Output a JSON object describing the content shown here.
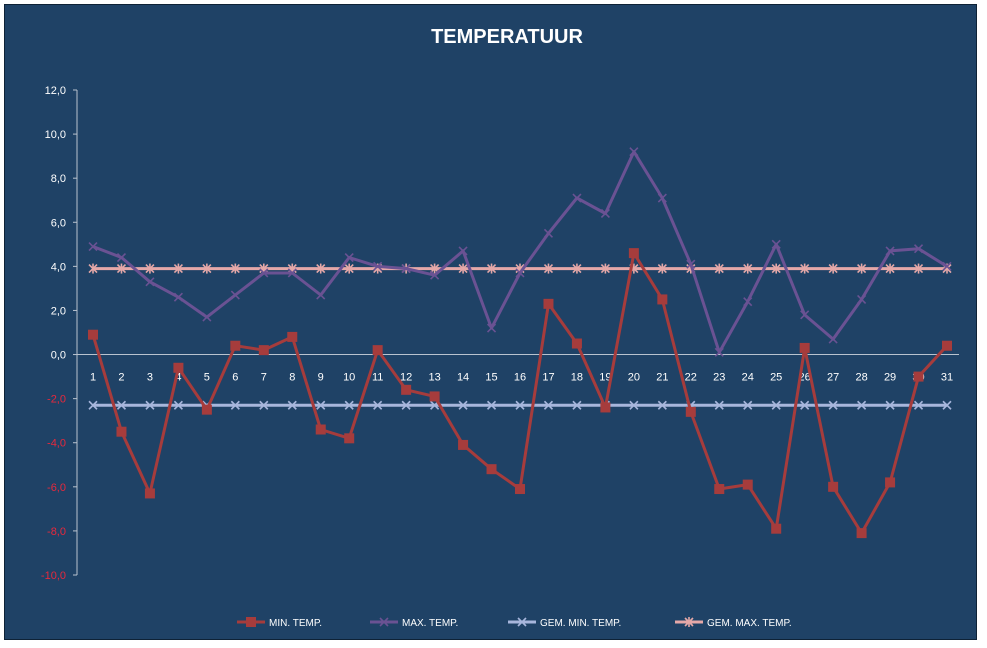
{
  "chart_data": {
    "type": "line",
    "title": "TEMPERATUUR",
    "xlabel": "",
    "ylabel": "",
    "x": [
      1,
      2,
      3,
      4,
      5,
      6,
      7,
      8,
      9,
      10,
      11,
      12,
      13,
      14,
      15,
      16,
      17,
      18,
      19,
      20,
      21,
      22,
      23,
      24,
      25,
      26,
      27,
      28,
      29,
      30,
      31
    ],
    "ylim": [
      -10,
      12
    ],
    "ytick_step": 2,
    "ytick_labels": [
      "-10,0",
      "-8,0",
      "-6,0",
      "-4,0",
      "-2,0",
      "0,0",
      "2,0",
      "4,0",
      "6,0",
      "8,0",
      "10,0",
      "12,0"
    ],
    "grid": false,
    "legend_position": "bottom",
    "negative_tick_color": "#e8283c",
    "positive_tick_color": "#ffffff",
    "background_color": "#1f4266",
    "series": [
      {
        "name": "MIN. TEMP.",
        "color": "#a63c3c",
        "marker": "square",
        "values": [
          0.9,
          -3.5,
          -6.3,
          -0.6,
          -2.5,
          0.4,
          0.2,
          0.8,
          -3.4,
          -3.8,
          0.2,
          -1.6,
          -1.9,
          -4.1,
          -5.2,
          -6.1,
          2.3,
          0.5,
          -2.4,
          4.6,
          2.5,
          -2.6,
          -6.1,
          -5.9,
          -7.9,
          0.3,
          -6.0,
          -8.1,
          -5.8,
          -1.0,
          0.4
        ]
      },
      {
        "name": "MAX. TEMP.",
        "color": "#6a5293",
        "marker": "x",
        "values": [
          4.9,
          4.4,
          3.3,
          2.6,
          1.7,
          2.7,
          3.7,
          3.7,
          2.7,
          4.4,
          4.0,
          3.9,
          3.6,
          4.7,
          1.2,
          3.7,
          5.5,
          7.1,
          6.4,
          9.2,
          7.1,
          4.1,
          0.1,
          2.4,
          5.0,
          1.8,
          0.7,
          2.5,
          4.7,
          4.8,
          4.0
        ]
      },
      {
        "name": "GEM. MIN. TEMP.",
        "color": "#a7b6dc",
        "marker": "x",
        "values": [
          -2.3,
          -2.3,
          -2.3,
          -2.3,
          -2.3,
          -2.3,
          -2.3,
          -2.3,
          -2.3,
          -2.3,
          -2.3,
          -2.3,
          -2.3,
          -2.3,
          -2.3,
          -2.3,
          -2.3,
          -2.3,
          -2.3,
          -2.3,
          -2.3,
          -2.3,
          -2.3,
          -2.3,
          -2.3,
          -2.3,
          -2.3,
          -2.3,
          -2.3,
          -2.3,
          -2.3
        ]
      },
      {
        "name": "GEM. MAX. TEMP.",
        "color": "#e5a8a8",
        "marker": "star",
        "values": [
          3.9,
          3.9,
          3.9,
          3.9,
          3.9,
          3.9,
          3.9,
          3.9,
          3.9,
          3.9,
          3.9,
          3.9,
          3.9,
          3.9,
          3.9,
          3.9,
          3.9,
          3.9,
          3.9,
          3.9,
          3.9,
          3.9,
          3.9,
          3.9,
          3.9,
          3.9,
          3.9,
          3.9,
          3.9,
          3.9,
          3.9
        ]
      }
    ]
  }
}
